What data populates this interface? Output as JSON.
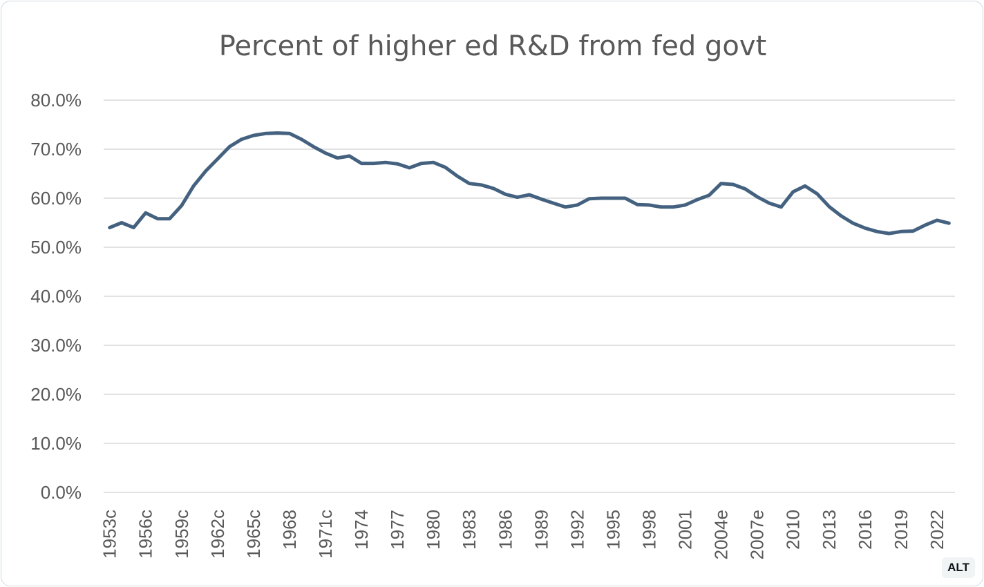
{
  "alt_badge": "ALT",
  "colors": {
    "line": "#44627f",
    "grid": "#d9d9d9",
    "text": "#595959"
  },
  "chart_data": {
    "type": "line",
    "title": "Percent of higher ed R&D from fed govt",
    "xlabel": "",
    "ylabel": "",
    "ylim": [
      0,
      80
    ],
    "yticks": [
      "0.0%",
      "10.0%",
      "20.0%",
      "30.0%",
      "40.0%",
      "50.0%",
      "60.0%",
      "70.0%",
      "80.0%"
    ],
    "x_tick_labels": [
      "1953c",
      "1956c",
      "1959c",
      "1962c",
      "1965c",
      "1968",
      "1971c",
      "1974",
      "1977",
      "1980",
      "1983",
      "1986",
      "1989",
      "1992",
      "1995",
      "1998",
      "2001",
      "2004e",
      "2007e",
      "2010",
      "2013",
      "2016",
      "2019",
      "2022"
    ],
    "grid": true,
    "series": [
      {
        "name": "Percent of higher ed R&D from fed govt",
        "x": [
          "1953c",
          "1954c",
          "1955c",
          "1956c",
          "1957c",
          "1958c",
          "1959c",
          "1960c",
          "1961c",
          "1962c",
          "1963c",
          "1964c",
          "1965c",
          "1966",
          "1967",
          "1968",
          "1969",
          "1970",
          "1971c",
          "1972",
          "1973",
          "1974",
          "1975",
          "1976",
          "1977",
          "1978",
          "1979",
          "1980",
          "1981",
          "1982",
          "1983",
          "1984",
          "1985",
          "1986",
          "1987",
          "1988",
          "1989",
          "1990",
          "1991",
          "1992",
          "1993",
          "1994",
          "1995",
          "1996",
          "1997",
          "1998",
          "1999",
          "2000",
          "2001",
          "2002",
          "2003",
          "2004e",
          "2005",
          "2006",
          "2007e",
          "2008",
          "2009",
          "2010",
          "2011",
          "2012",
          "2013",
          "2014",
          "2015",
          "2016",
          "2017",
          "2018",
          "2019",
          "2020",
          "2021",
          "2022",
          "2023"
        ],
        "values": [
          54.0,
          55.0,
          54.0,
          57.0,
          55.8,
          55.8,
          58.5,
          62.5,
          65.5,
          68.0,
          70.5,
          72.0,
          72.8,
          73.2,
          73.3,
          73.2,
          72.0,
          70.5,
          69.2,
          68.2,
          68.6,
          67.1,
          67.1,
          67.3,
          67.0,
          66.2,
          67.1,
          67.3,
          66.3,
          64.5,
          63.0,
          62.7,
          62.0,
          60.8,
          60.2,
          60.7,
          59.8,
          59.0,
          58.2,
          58.6,
          59.9,
          60.0,
          60.0,
          60.0,
          58.7,
          58.6,
          58.2,
          58.2,
          58.6,
          59.7,
          60.6,
          63.0,
          62.8,
          61.9,
          60.3,
          59.0,
          58.2,
          61.3,
          62.5,
          60.9,
          58.3,
          56.4,
          54.9,
          53.9,
          53.2,
          52.8,
          53.2,
          53.3,
          54.5,
          55.5,
          54.9
        ]
      }
    ]
  }
}
